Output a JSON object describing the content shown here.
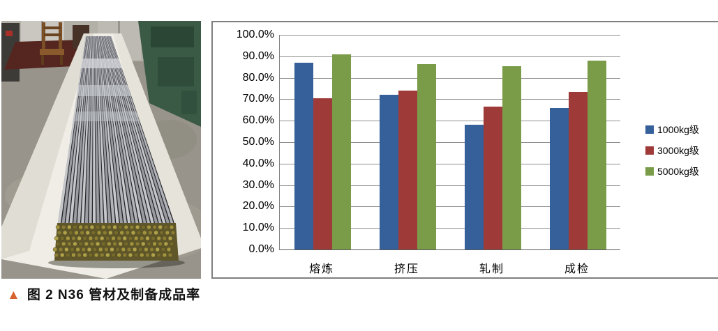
{
  "figure": {
    "caption_marker": "▲",
    "caption_text": "图 2  N36 管材及制备成品率"
  },
  "chart_data": {
    "type": "bar",
    "title": "",
    "xlabel": "",
    "ylabel": "",
    "categories": [
      "熔炼",
      "挤压",
      "轧制",
      "成检"
    ],
    "series": [
      {
        "name": "1000kg级",
        "color": "#36609A",
        "values": [
          87.0,
          72.0,
          58.0,
          66.0
        ]
      },
      {
        "name": "3000kg级",
        "color": "#9E3B39",
        "values": [
          70.5,
          74.0,
          66.5,
          73.5
        ]
      },
      {
        "name": "5000kg级",
        "color": "#7A9C49",
        "values": [
          91.0,
          86.5,
          85.5,
          88.0
        ]
      }
    ],
    "ylim": [
      0,
      100
    ],
    "ytick_step": 10,
    "yticks": [
      "100.0%",
      "90.0%",
      "80.0%",
      "70.0%",
      "60.0%",
      "50.0%",
      "40.0%",
      "30.0%",
      "20.0%",
      "10.0%",
      "0.0%"
    ],
    "grid": true,
    "legend_position": "right"
  }
}
